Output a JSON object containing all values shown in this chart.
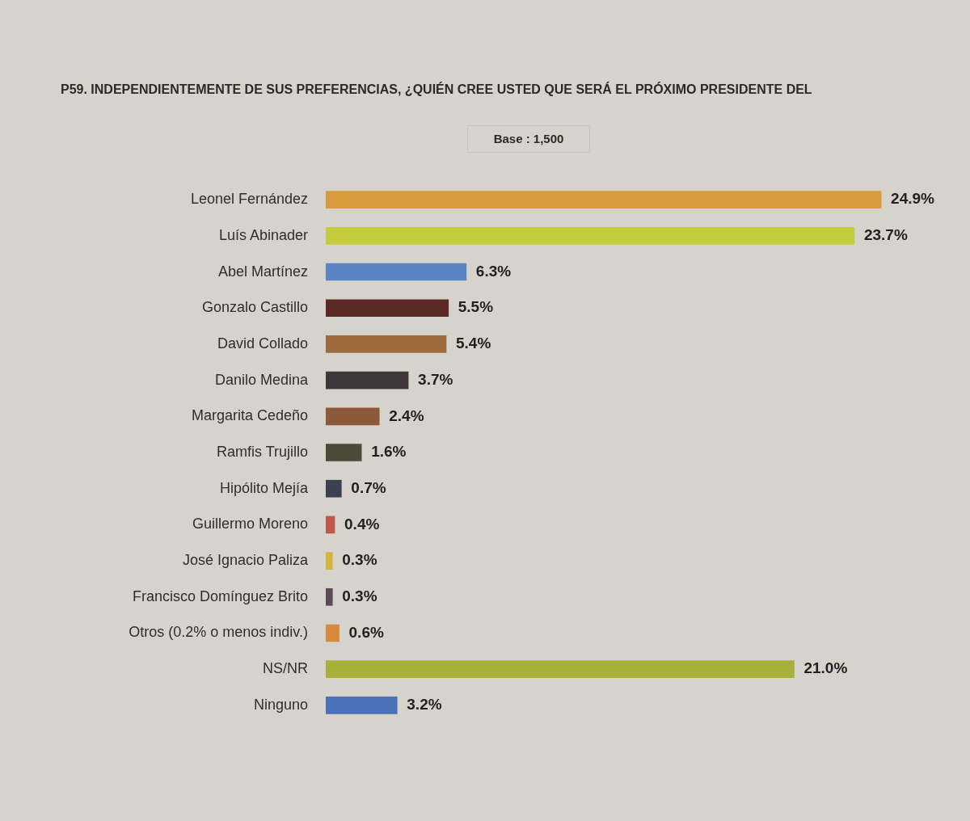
{
  "chart_data": {
    "type": "bar",
    "orientation": "horizontal",
    "title": "P59. INDEPENDIENTEMENTE DE SUS PREFERENCIAS, ¿QUIÉN CREE USTED QUE SERÁ EL PRÓXIMO PRESIDENTE DEL",
    "subtitle": "Base : 1,500",
    "categories": [
      "Leonel Fernández",
      "Luís Abinader",
      "Abel Martínez",
      "Gonzalo Castillo",
      "David Collado",
      "Danilo Medina",
      "Margarita Cedeño",
      "Ramfis Trujillo",
      "Hipólito Mejía",
      "Guillermo Moreno",
      "José Ignacio Paliza",
      "Francisco Domínguez Brito",
      "Otros (0.2% o menos indiv.)",
      "NS/NR",
      "Ninguno"
    ],
    "values": [
      24.9,
      23.7,
      6.3,
      5.5,
      5.4,
      3.7,
      2.4,
      1.6,
      0.7,
      0.4,
      0.3,
      0.3,
      0.6,
      21.0,
      3.2
    ],
    "colors": [
      "#d99a3c",
      "#c4cc3c",
      "#5b84c4",
      "#5c2a24",
      "#9c6a3c",
      "#3e3638",
      "#8c5a3a",
      "#4a4a38",
      "#3a4252",
      "#c0564a",
      "#d4b63c",
      "#5a4a56",
      "#d88a3c",
      "#a8b03c",
      "#4a72b8"
    ],
    "value_labels": [
      "24.9%",
      "23.7%",
      "6.3%",
      "5.5%",
      "5.4%",
      "3.7%",
      "2.4%",
      "1.6%",
      "0.7%",
      "0.4%",
      "0.3%",
      "0.3%",
      "0.6%",
      "21.0%",
      "3.2%"
    ],
    "tick_labels": "y"
  }
}
